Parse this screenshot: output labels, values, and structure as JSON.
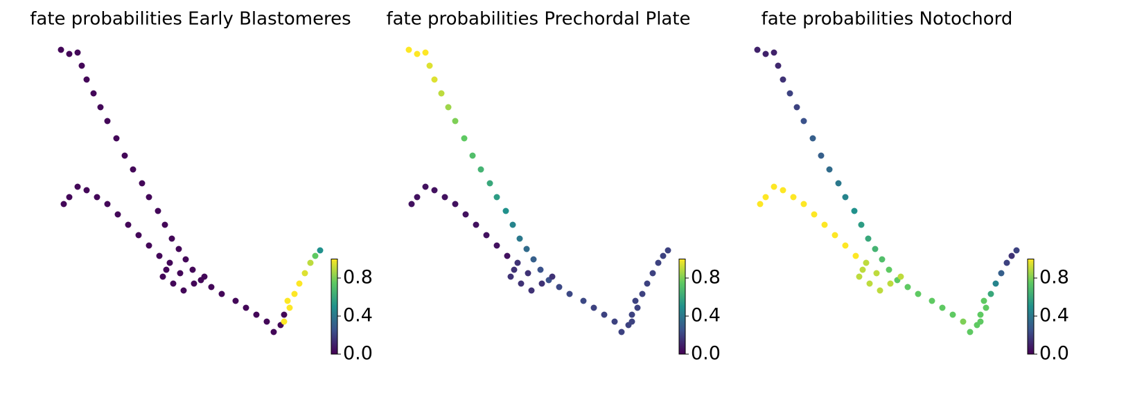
{
  "chart_data": [
    {
      "type": "scatter",
      "title": "fate probabilities Early Blastomeres",
      "colormap": "viridis",
      "x": [
        8,
        20,
        32,
        38,
        45,
        55,
        65,
        75,
        88,
        100,
        112,
        125,
        135,
        148,
        158,
        168,
        178,
        188,
        198,
        210,
        225,
        240,
        260,
        275,
        290,
        305,
        315,
        325,
        330,
        12,
        20,
        32,
        45,
        60,
        75,
        90,
        105,
        120,
        135,
        150,
        165,
        155,
        180,
        170,
        200,
        185,
        215,
        160,
        335,
        345,
        352,
        360,
        368,
        375,
        382,
        338,
        330
      ],
      "y": [
        423,
        417,
        419,
        400,
        380,
        360,
        340,
        320,
        295,
        270,
        250,
        230,
        210,
        190,
        170,
        150,
        135,
        120,
        105,
        90,
        80,
        70,
        60,
        50,
        40,
        30,
        15,
        25,
        40,
        200,
        210,
        225,
        220,
        210,
        200,
        185,
        170,
        155,
        140,
        125,
        115,
        95,
        100,
        85,
        85,
        75,
        95,
        105,
        60,
        70,
        85,
        100,
        115,
        125,
        133,
        50,
        30
      ],
      "values": [
        0.02,
        0.02,
        0.02,
        0.02,
        0.02,
        0.02,
        0.02,
        0.02,
        0.02,
        0.02,
        0.02,
        0.02,
        0.02,
        0.02,
        0.02,
        0.02,
        0.02,
        0.02,
        0.02,
        0.02,
        0.02,
        0.02,
        0.02,
        0.02,
        0.02,
        0.02,
        0.02,
        0.02,
        0.02,
        0.02,
        0.02,
        0.02,
        0.02,
        0.02,
        0.02,
        0.02,
        0.02,
        0.02,
        0.02,
        0.02,
        0.02,
        0.02,
        0.02,
        0.02,
        0.02,
        0.02,
        0.02,
        0.02,
        1,
        1,
        1,
        0.95,
        0.9,
        0.75,
        0.5,
        1,
        1
      ],
      "xlim": [
        0,
        395
      ],
      "ylim": [
        0,
        430
      ],
      "clim": [
        0,
        1
      ],
      "cticks": [
        {
          "value": 0,
          "label": "0.0"
        },
        {
          "value": 0.4,
          "label": "0.4"
        },
        {
          "value": 0.8,
          "label": "0.8"
        }
      ]
    },
    {
      "type": "scatter",
      "title": "fate probabilities Prechordal Plate",
      "colormap": "viridis",
      "x": [
        8,
        20,
        32,
        38,
        45,
        55,
        65,
        75,
        88,
        100,
        112,
        125,
        135,
        148,
        158,
        168,
        178,
        188,
        198,
        210,
        225,
        240,
        260,
        275,
        290,
        305,
        315,
        325,
        330,
        12,
        20,
        32,
        45,
        60,
        75,
        90,
        105,
        120,
        135,
        150,
        165,
        155,
        180,
        170,
        200,
        185,
        215,
        160,
        335,
        345,
        352,
        360,
        368,
        375,
        382,
        338,
        330
      ],
      "y": [
        423,
        417,
        419,
        400,
        380,
        360,
        340,
        320,
        295,
        270,
        250,
        230,
        210,
        190,
        170,
        150,
        135,
        120,
        105,
        90,
        80,
        70,
        60,
        50,
        40,
        30,
        15,
        25,
        40,
        200,
        210,
        225,
        220,
        210,
        200,
        185,
        170,
        155,
        140,
        125,
        115,
        95,
        100,
        85,
        85,
        75,
        95,
        105,
        60,
        70,
        85,
        100,
        115,
        125,
        133,
        50,
        30
      ],
      "values": [
        1,
        1,
        1,
        0.95,
        0.95,
        0.9,
        0.85,
        0.8,
        0.75,
        0.7,
        0.65,
        0.6,
        0.55,
        0.5,
        0.45,
        0.4,
        0.35,
        0.3,
        0.25,
        0.25,
        0.22,
        0.22,
        0.22,
        0.2,
        0.2,
        0.2,
        0.2,
        0.2,
        0.2,
        0.05,
        0.05,
        0.05,
        0.05,
        0.05,
        0.05,
        0.05,
        0.05,
        0.05,
        0.05,
        0.05,
        0.15,
        0.15,
        0.15,
        0.15,
        0.15,
        0.15,
        0.15,
        0.15,
        0.2,
        0.2,
        0.2,
        0.2,
        0.2,
        0.2,
        0.2,
        0.2,
        0.2
      ],
      "xlim": [
        0,
        395
      ],
      "ylim": [
        0,
        430
      ],
      "clim": [
        0,
        1
      ],
      "cticks": [
        {
          "value": 0,
          "label": "0.0"
        },
        {
          "value": 0.4,
          "label": "0.4"
        },
        {
          "value": 0.8,
          "label": "0.8"
        }
      ]
    },
    {
      "type": "scatter",
      "title": "fate probabilities Notochord",
      "colormap": "viridis",
      "x": [
        8,
        20,
        32,
        38,
        45,
        55,
        65,
        75,
        88,
        100,
        112,
        125,
        135,
        148,
        158,
        168,
        178,
        188,
        198,
        210,
        225,
        240,
        260,
        275,
        290,
        305,
        315,
        325,
        330,
        12,
        20,
        32,
        45,
        60,
        75,
        90,
        105,
        120,
        135,
        150,
        165,
        155,
        180,
        170,
        200,
        185,
        215,
        160,
        335,
        345,
        352,
        360,
        368,
        375,
        382,
        338,
        330
      ],
      "y": [
        423,
        417,
        419,
        400,
        380,
        360,
        340,
        320,
        295,
        270,
        250,
        230,
        210,
        190,
        170,
        150,
        135,
        120,
        105,
        90,
        80,
        70,
        60,
        50,
        40,
        30,
        15,
        25,
        40,
        200,
        210,
        225,
        220,
        210,
        200,
        185,
        170,
        155,
        140,
        125,
        115,
        95,
        100,
        85,
        85,
        75,
        95,
        105,
        60,
        70,
        85,
        100,
        115,
        125,
        133,
        50,
        30
      ],
      "values": [
        0.1,
        0.1,
        0.1,
        0.12,
        0.15,
        0.2,
        0.2,
        0.25,
        0.3,
        0.3,
        0.35,
        0.4,
        0.45,
        0.5,
        0.55,
        0.6,
        0.65,
        0.7,
        0.75,
        0.75,
        0.75,
        0.75,
        0.75,
        0.75,
        0.75,
        0.8,
        0.75,
        0.75,
        0.75,
        1,
        1,
        1,
        1,
        1,
        1,
        1,
        1,
        1,
        1,
        1,
        0.9,
        0.9,
        0.9,
        0.9,
        0.9,
        0.9,
        0.9,
        0.9,
        0.75,
        0.6,
        0.45,
        0.3,
        0.2,
        0.15,
        0.2,
        0.75,
        0.75
      ],
      "xlim": [
        0,
        395
      ],
      "ylim": [
        0,
        430
      ],
      "clim": [
        0,
        1
      ],
      "cticks": [
        {
          "value": 0,
          "label": "0.0"
        },
        {
          "value": 0.4,
          "label": "0.4"
        },
        {
          "value": 0.8,
          "label": "0.8"
        }
      ]
    }
  ]
}
